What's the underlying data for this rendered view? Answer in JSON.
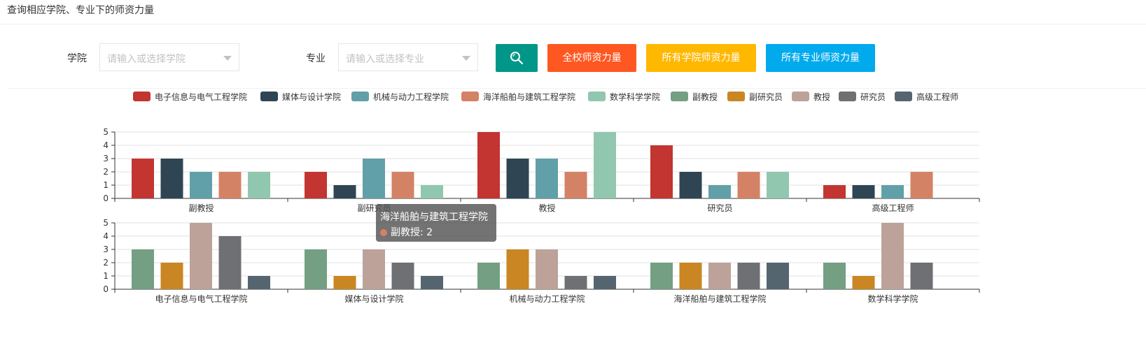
{
  "header": {
    "title": "查询相应学院、专业下的师资力量"
  },
  "filters": {
    "college_label": "学院",
    "college_placeholder": "请输入或选择学院",
    "major_label": "专业",
    "major_placeholder": "请输入或选择专业"
  },
  "buttons": {
    "search_icon": "search-icon",
    "school_label": "全校师资力量",
    "all_colleges_label": "所有学院师资力量",
    "all_majors_label": "所有专业师资力量"
  },
  "colors": {
    "search_btn": "#009688",
    "school_btn": "#FF5722",
    "colleges_btn": "#FFB800",
    "majors_btn": "#01AAED"
  },
  "legend": [
    {
      "name": "电子信息与电气工程学院",
      "color": "#c23531"
    },
    {
      "name": "媒体与设计学院",
      "color": "#2f4554"
    },
    {
      "name": "机械与动力工程学院",
      "color": "#61a0a8"
    },
    {
      "name": "海洋船舶与建筑工程学院",
      "color": "#d48265"
    },
    {
      "name": "数学科学学院",
      "color": "#91c7ae"
    },
    {
      "name": "副教授",
      "color": "#749f83"
    },
    {
      "name": "副研究员",
      "color": "#ca8622"
    },
    {
      "name": "教授",
      "color": "#bda29a"
    },
    {
      "name": "研究员",
      "color": "#6e7074"
    },
    {
      "name": "高级工程师",
      "color": "#546570"
    }
  ],
  "tooltip": {
    "title": "海洋船舶与建筑工程学院",
    "line": "副教授: 2",
    "color": "#d48265"
  },
  "chart_data": [
    {
      "type": "bar",
      "categories": [
        "副教授",
        "副研究员",
        "教授",
        "研究员",
        "高级工程师"
      ],
      "ylim": [
        0,
        5
      ],
      "yticks": [
        "0",
        "1",
        "2",
        "3",
        "4",
        "5"
      ],
      "series": [
        {
          "name": "电子信息与电气工程学院",
          "values": [
            3,
            2,
            5,
            4,
            1
          ]
        },
        {
          "name": "媒体与设计学院",
          "values": [
            3,
            1,
            3,
            2,
            1
          ]
        },
        {
          "name": "机械与动力工程学院",
          "values": [
            2,
            3,
            3,
            1,
            1
          ]
        },
        {
          "name": "海洋船舶与建筑工程学院",
          "values": [
            2,
            2,
            2,
            2,
            2
          ]
        },
        {
          "name": "数学科学学院",
          "values": [
            2,
            1,
            5,
            2,
            0
          ]
        }
      ]
    },
    {
      "type": "bar",
      "categories": [
        "电子信息与电气工程学院",
        "媒体与设计学院",
        "机械与动力工程学院",
        "海洋船舶与建筑工程学院",
        "数学科学学院"
      ],
      "ylim": [
        0,
        5
      ],
      "yticks": [
        "0",
        "1",
        "2",
        "3",
        "4",
        "5"
      ],
      "series": [
        {
          "name": "副教授",
          "values": [
            3,
            3,
            2,
            2,
            2
          ]
        },
        {
          "name": "副研究员",
          "values": [
            2,
            1,
            3,
            2,
            1
          ]
        },
        {
          "name": "教授",
          "values": [
            5,
            3,
            3,
            2,
            5
          ]
        },
        {
          "name": "研究员",
          "values": [
            4,
            2,
            1,
            2,
            2
          ]
        },
        {
          "name": "高级工程师",
          "values": [
            1,
            1,
            1,
            2,
            0
          ]
        }
      ]
    }
  ]
}
